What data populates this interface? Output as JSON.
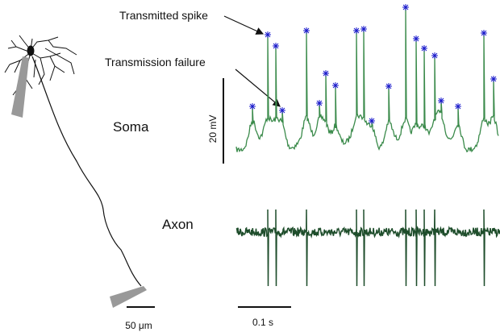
{
  "annotations": {
    "transmitted_spike": "Transmitted spike",
    "transmission_failure": "Transmission failure"
  },
  "labels": {
    "soma": "Soma",
    "axon": "Axon"
  },
  "scale_bars": {
    "voltage": "20 mV",
    "time": "0.1 s",
    "length": "50 μm"
  }
}
